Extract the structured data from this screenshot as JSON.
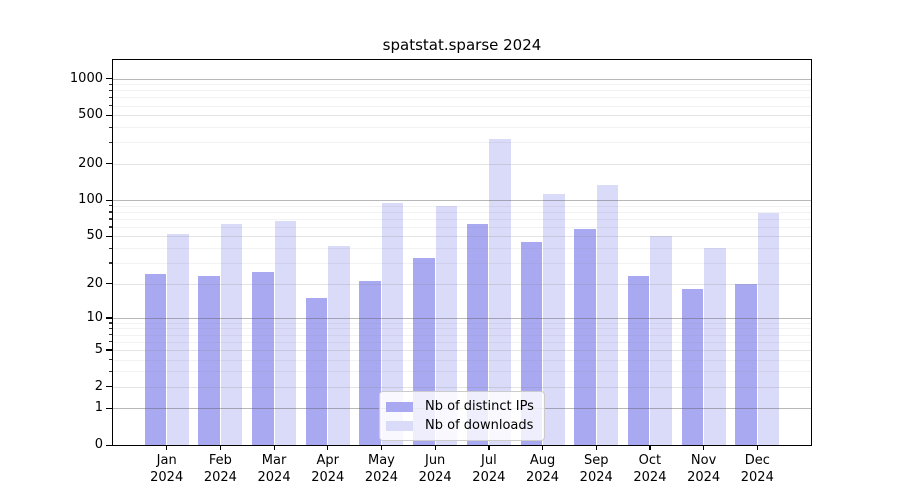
{
  "chart_data": {
    "type": "bar",
    "title": "spatstat.sparse 2024",
    "categories": [
      "Jan 2024",
      "Feb 2024",
      "Mar 2024",
      "Apr 2024",
      "May 2024",
      "Jun 2024",
      "Jul 2024",
      "Aug 2024",
      "Sep 2024",
      "Oct 2024",
      "Nov 2024",
      "Dec 2024"
    ],
    "series": [
      {
        "name": "Nb of distinct IPs",
        "color": "#a9a9f2",
        "values": [
          24,
          23,
          25,
          15,
          21,
          33,
          64,
          45,
          58,
          23,
          18,
          20
        ]
      },
      {
        "name": "Nb of downloads",
        "color": "#dadaf9",
        "values": [
          52,
          64,
          67,
          42,
          95,
          90,
          320,
          113,
          134,
          50,
          40,
          79
        ]
      }
    ],
    "yticks": [
      0,
      1,
      2,
      5,
      10,
      20,
      50,
      100,
      200,
      500,
      1000
    ],
    "minor_yticks": [
      3,
      4,
      6,
      7,
      8,
      9,
      30,
      40,
      60,
      70,
      80,
      90,
      300,
      400,
      600,
      700,
      800,
      900
    ],
    "scale": "log1p",
    "ylim": [
      0,
      1420
    ],
    "grid": true,
    "legend_position": "lower center"
  }
}
